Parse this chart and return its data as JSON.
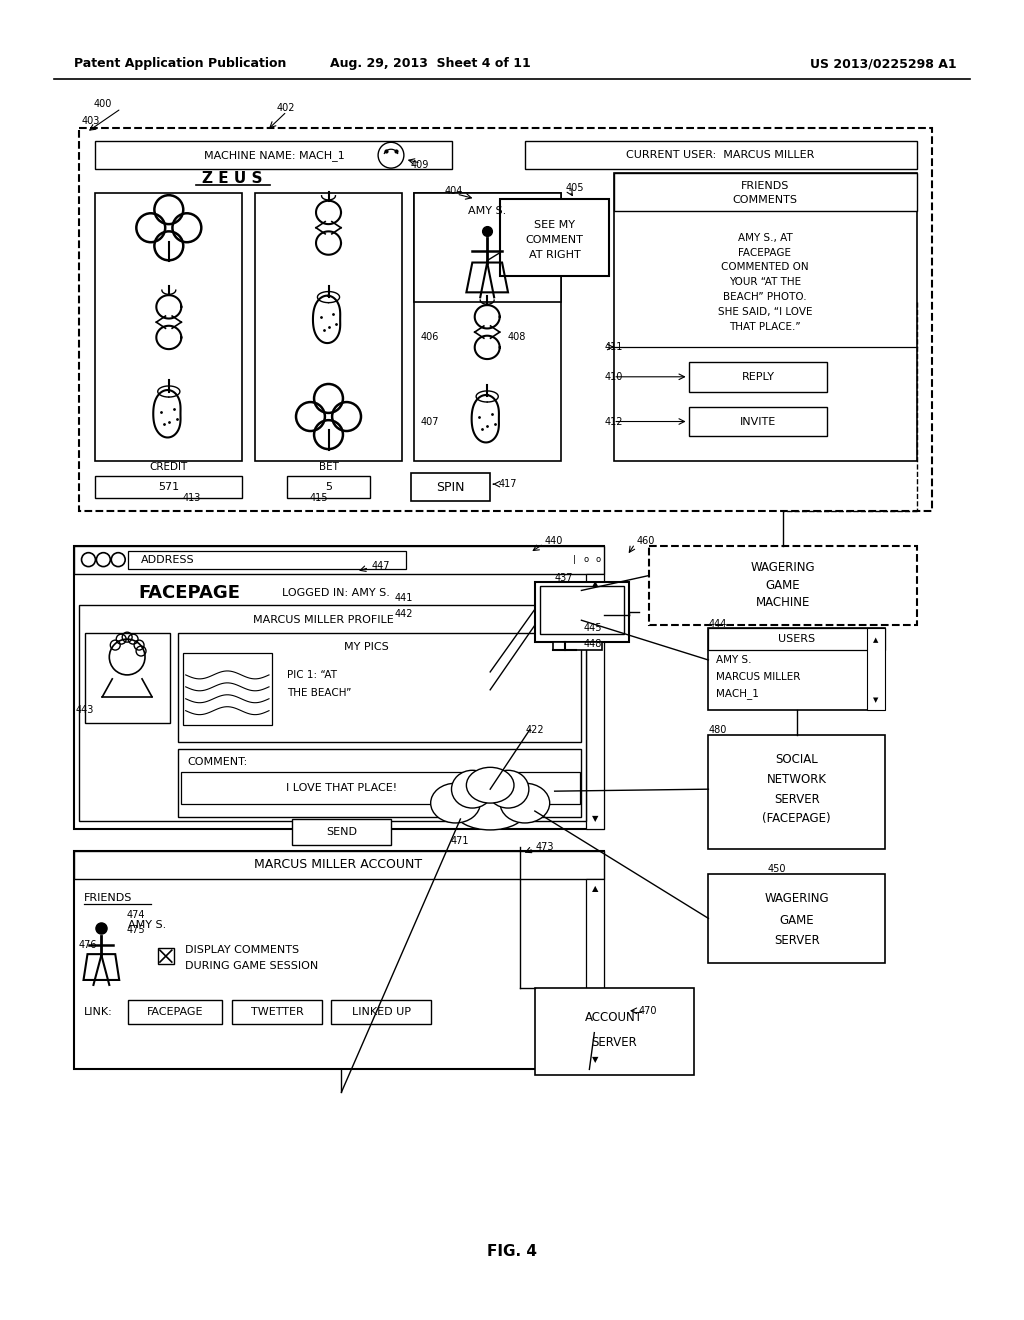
{
  "bg_color": "#ffffff",
  "header_left": "Patent Application Publication",
  "header_mid": "Aug. 29, 2013  Sheet 4 of 11",
  "header_right": "US 2013/0225298 A1",
  "footer_label": "FIG. 4"
}
